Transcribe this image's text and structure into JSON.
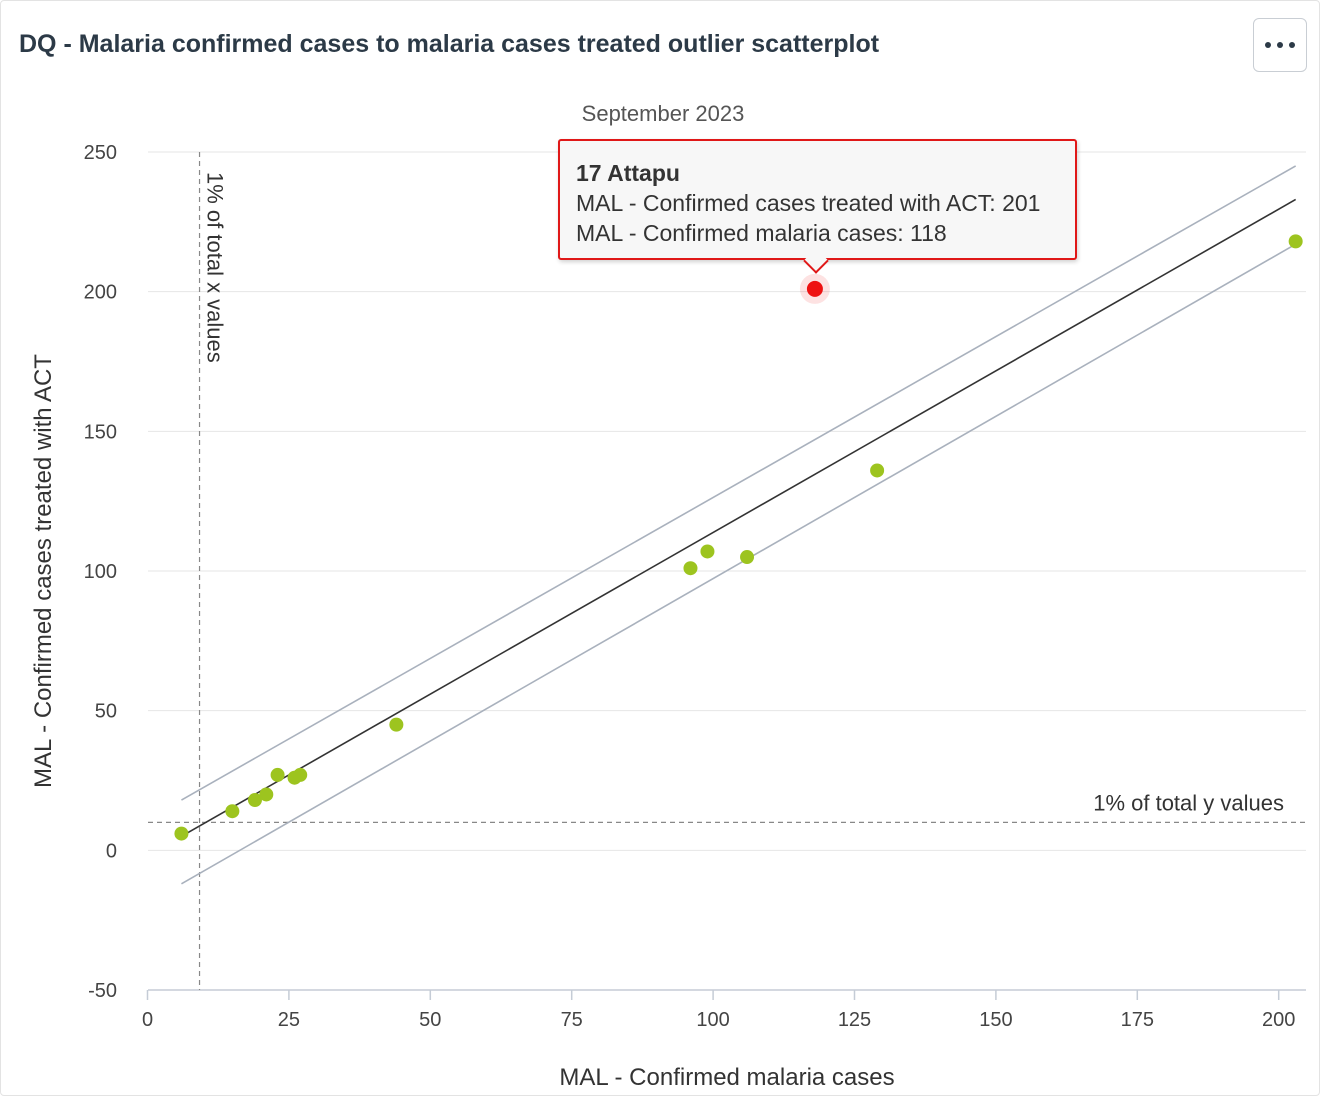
{
  "header": {
    "title": "DQ - Malaria confirmed cases to malaria cases treated outlier scatterplot",
    "menu_icon": "more-horizontal-icon"
  },
  "tooltip": {
    "name": "17 Attapu",
    "line1": "MAL - Confirmed cases treated with ACT: 201",
    "line2": "MAL - Confirmed malaria cases: 118"
  },
  "chart_data": {
    "type": "scatter",
    "subtitle": "September 2023",
    "xlabel": "MAL - Confirmed malaria cases",
    "ylabel": "MAL - Confirmed cases treated with ACT",
    "xlim": [
      0,
      205
    ],
    "ylim": [
      -50,
      250
    ],
    "x_ticks": [
      0,
      25,
      50,
      75,
      100,
      125,
      150,
      175,
      200
    ],
    "y_ticks": [
      -50,
      0,
      50,
      100,
      150,
      200,
      250
    ],
    "grid": true,
    "series": [
      {
        "color": "#9dc41f",
        "points": [
          {
            "x": 6,
            "y": 6
          },
          {
            "x": 15,
            "y": 14
          },
          {
            "x": 19,
            "y": 18
          },
          {
            "x": 21,
            "y": 20
          },
          {
            "x": 23,
            "y": 27
          },
          {
            "x": 26,
            "y": 26
          },
          {
            "x": 27,
            "y": 27
          },
          {
            "x": 44,
            "y": 45
          },
          {
            "x": 96,
            "y": 101
          },
          {
            "x": 99,
            "y": 107
          },
          {
            "x": 106,
            "y": 105
          },
          {
            "x": 129,
            "y": 136
          },
          {
            "x": 203,
            "y": 218
          }
        ]
      },
      {
        "color": "#ee1111",
        "points": [
          {
            "x": 118,
            "y": 201
          }
        ]
      }
    ],
    "regression_line": {
      "x": [
        6,
        203
      ],
      "y": [
        5,
        233
      ],
      "color": "#333333"
    },
    "upper_bound": {
      "x": [
        6,
        203
      ],
      "y": [
        18,
        245
      ],
      "color": "#a9b1bd"
    },
    "lower_bound": {
      "x": [
        6,
        203
      ],
      "y": [
        -12,
        217
      ],
      "color": "#a9b1bd"
    },
    "x_threshold": {
      "value": 9.2,
      "label": "1% of total x values"
    },
    "y_threshold": {
      "value": 10,
      "label": "1% of total y values"
    }
  }
}
